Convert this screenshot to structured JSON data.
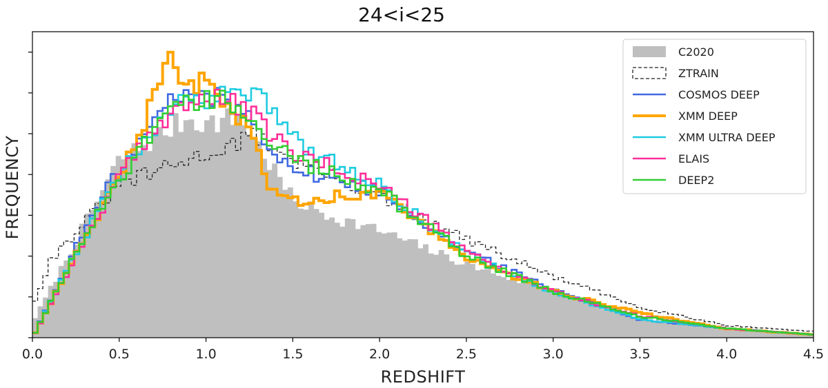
{
  "chart_data": {
    "type": "histogram",
    "title": "24<i<25",
    "xlabel": "REDSHIFT",
    "ylabel": "FREQUENCY",
    "xlim": [
      0.0,
      4.5
    ],
    "ylim": [
      0,
      1.0
    ],
    "x_ticks": [
      "0.0",
      "0.5",
      "1.0",
      "1.5",
      "2.0",
      "2.5",
      "3.0",
      "3.5",
      "4.0",
      "4.5"
    ],
    "y_tick_labels_shown": false,
    "legend_position": "top-right",
    "grid": false,
    "legend": [
      {
        "label": "C2020",
        "color": "#bfbfbf",
        "style": "filled"
      },
      {
        "label": "ZTRAIN",
        "color": "#222222",
        "style": "dashed"
      },
      {
        "label": "COSMOS DEEP",
        "color": "#4169e1",
        "style": "line"
      },
      {
        "label": "XMM DEEP",
        "color": "#ffa500",
        "style": "line-thick"
      },
      {
        "label": "XMM ULTRA DEEP",
        "color": "#1ecbe1",
        "style": "line"
      },
      {
        "label": "ELAIS",
        "color": "#ff2e9a",
        "style": "line"
      },
      {
        "label": "DEEP2",
        "color": "#32cd32",
        "style": "line"
      }
    ],
    "series": [
      {
        "name": "C2020",
        "color": "#bfbfbf",
        "x": [
          0.0,
          0.5,
          0.9,
          1.0,
          1.2,
          1.5,
          1.7,
          2.0,
          2.5,
          3.0,
          3.5,
          4.0,
          4.5
        ],
        "values": [
          0.05,
          0.58,
          0.72,
          0.7,
          0.72,
          0.45,
          0.4,
          0.35,
          0.24,
          0.15,
          0.06,
          0.03,
          0.01
        ]
      },
      {
        "name": "ZTRAIN",
        "color": "#222222",
        "x": [
          0.0,
          0.1,
          0.5,
          1.0,
          1.3,
          1.5,
          2.0,
          2.5,
          3.0,
          3.5,
          4.0,
          4.5
        ],
        "values": [
          0.1,
          0.25,
          0.5,
          0.6,
          0.66,
          0.58,
          0.46,
          0.32,
          0.2,
          0.1,
          0.04,
          0.02
        ]
      },
      {
        "name": "COSMOS DEEP",
        "color": "#4169e1",
        "x": [
          0.0,
          0.3,
          0.5,
          0.8,
          1.0,
          1.2,
          1.5,
          2.0,
          2.5,
          3.0,
          3.5,
          4.0,
          4.5
        ],
        "values": [
          0.0,
          0.35,
          0.55,
          0.78,
          0.8,
          0.75,
          0.55,
          0.48,
          0.28,
          0.16,
          0.06,
          0.03,
          0.01
        ]
      },
      {
        "name": "XMM DEEP",
        "color": "#ffa500",
        "x": [
          0.0,
          0.3,
          0.5,
          0.8,
          0.9,
          1.0,
          1.2,
          1.4,
          1.6,
          2.0,
          2.5,
          3.0,
          3.5,
          4.0,
          4.5
        ],
        "values": [
          0.0,
          0.33,
          0.52,
          0.9,
          0.84,
          0.82,
          0.72,
          0.46,
          0.45,
          0.48,
          0.26,
          0.15,
          0.08,
          0.03,
          0.01
        ]
      },
      {
        "name": "XMM ULTRA DEEP",
        "color": "#1ecbe1",
        "x": [
          0.0,
          0.3,
          0.5,
          0.8,
          1.0,
          1.3,
          1.5,
          2.0,
          2.5,
          3.0,
          3.5,
          4.0,
          4.5
        ],
        "values": [
          0.0,
          0.33,
          0.53,
          0.76,
          0.78,
          0.82,
          0.65,
          0.5,
          0.27,
          0.15,
          0.06,
          0.03,
          0.01
        ]
      },
      {
        "name": "ELAIS",
        "color": "#ff2e9a",
        "x": [
          0.0,
          0.3,
          0.5,
          0.8,
          1.0,
          1.2,
          1.5,
          2.0,
          2.5,
          3.0,
          3.5,
          4.0,
          4.5
        ],
        "values": [
          0.0,
          0.32,
          0.52,
          0.75,
          0.78,
          0.76,
          0.6,
          0.5,
          0.28,
          0.15,
          0.07,
          0.03,
          0.01
        ]
      },
      {
        "name": "DEEP2",
        "color": "#32cd32",
        "x": [
          0.0,
          0.3,
          0.5,
          0.8,
          1.0,
          1.2,
          1.5,
          2.0,
          2.5,
          3.0,
          3.5,
          4.0,
          4.5
        ],
        "values": [
          0.0,
          0.33,
          0.52,
          0.76,
          0.79,
          0.75,
          0.58,
          0.48,
          0.27,
          0.15,
          0.07,
          0.03,
          0.01
        ]
      }
    ]
  }
}
